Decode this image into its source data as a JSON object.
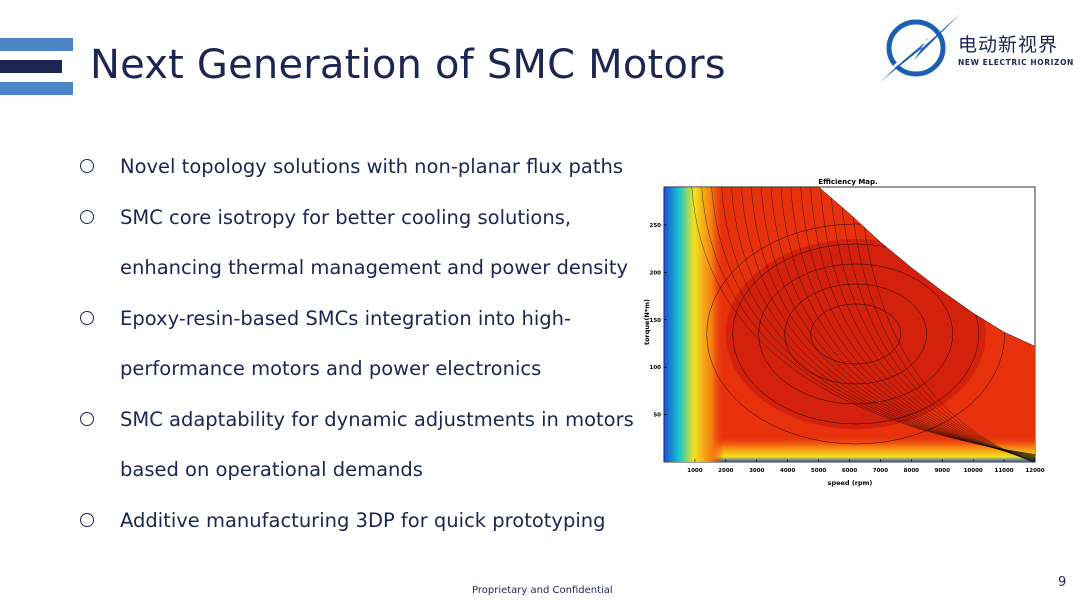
{
  "slide": {
    "title": "Next Generation of SMC Motors",
    "footer": "Proprietary and Confidential",
    "page_number": "9"
  },
  "logo": {
    "name_cn": "电动新视界",
    "name_en": "NEW ELECTRIC HORIZON",
    "icon": "lightning-globe-icon",
    "accent": "#1a5fb4"
  },
  "bullets": [
    "Novel topology solutions with non-planar flux paths",
    "SMC core isotropy for better cooling solutions, enhancing thermal management and power density",
    "Epoxy-resin-based SMCs integration into high-performance motors and power electronics",
    "SMC adaptability for dynamic adjustments in motors based on operational demands",
    "Additive manufacturing 3DP for quick prototyping"
  ],
  "chart_data": {
    "type": "heatmap",
    "title": "Efficiency Map.",
    "xlabel": "speed (rpm)",
    "ylabel": "torque(N*m)",
    "x_ticks": [
      1000,
      2000,
      3000,
      4000,
      5000,
      6000,
      7000,
      8000,
      9000,
      10000,
      11000,
      12000
    ],
    "y_ticks": [
      50,
      100,
      150,
      200,
      250
    ],
    "xlim": [
      0,
      12000
    ],
    "ylim": [
      0,
      290
    ],
    "torque_limit_curve": {
      "speed": [
        0,
        5000,
        6000,
        7000,
        8000,
        9000,
        10000,
        11000,
        12000
      ],
      "torque": [
        290,
        290,
        262,
        232,
        205,
        180,
        157,
        137,
        122
      ]
    },
    "colors": {
      "high": "#c1140c",
      "mid": "#e8320e",
      "orange": "#f67b12",
      "yellow": "#f4e21d",
      "cyan": "#12c6cf",
      "blue": "#1f4fd6"
    }
  }
}
